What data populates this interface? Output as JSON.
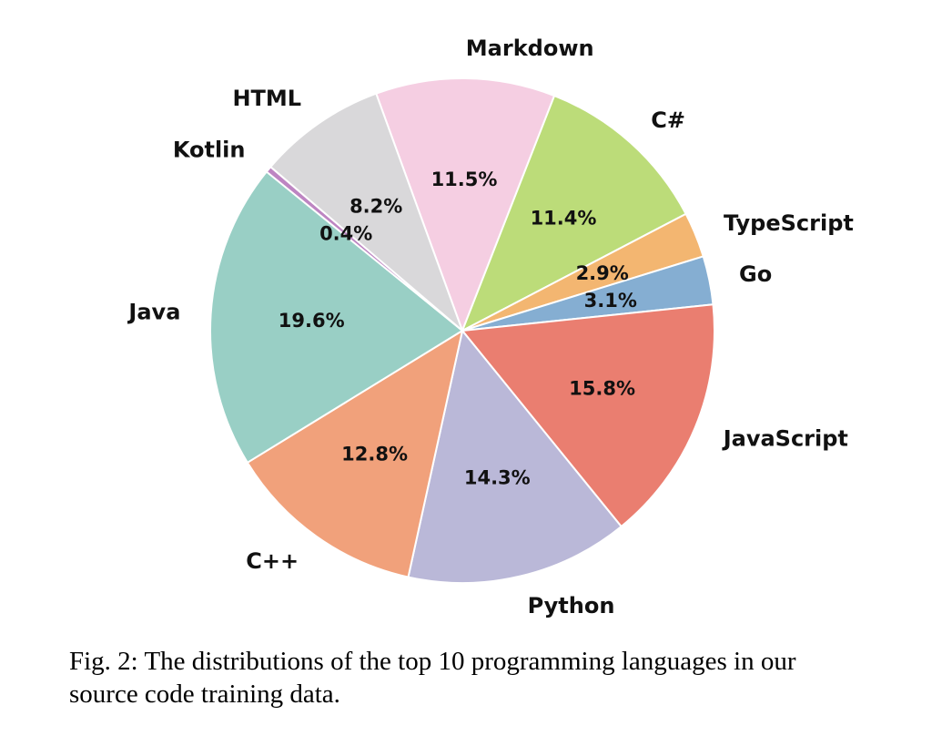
{
  "figure": {
    "caption_line1": "Fig. 2: The distributions of the top 10 programming languages in our",
    "caption_line2": "source code training data."
  },
  "chart_data": {
    "type": "pie",
    "title": "",
    "categories": [
      "Markdown",
      "C#",
      "TypeScript",
      "Go",
      "JavaScript",
      "Python",
      "C++",
      "Java",
      "Kotlin",
      "HTML"
    ],
    "ids": [
      "markdown",
      "csharp",
      "typescript",
      "go",
      "javascript",
      "python",
      "cpp",
      "java",
      "kotlin",
      "html"
    ],
    "values": [
      11.5,
      11.4,
      2.9,
      3.1,
      15.8,
      14.3,
      12.8,
      19.6,
      0.4,
      8.2
    ],
    "percent_labels": [
      "11.5%",
      "11.4%",
      "2.9%",
      "3.1%",
      "15.8%",
      "14.3%",
      "12.8%",
      "19.6%",
      "0.4%",
      "8.2%"
    ],
    "colors": [
      "#f5cee2",
      "#bcdc79",
      "#f3b671",
      "#85aed2",
      "#ea7e70",
      "#bab8d8",
      "#f1a17b",
      "#99cfc5",
      "#bd85c2",
      "#d9d8da"
    ],
    "start_angle_deg": 110,
    "direction": "clockwise",
    "label_distance": 1.12,
    "pct_distance": 0.6,
    "wedge_edge_color": "#ffffff",
    "text_color": "#111111",
    "legend": "none",
    "background": "#ffffff"
  }
}
